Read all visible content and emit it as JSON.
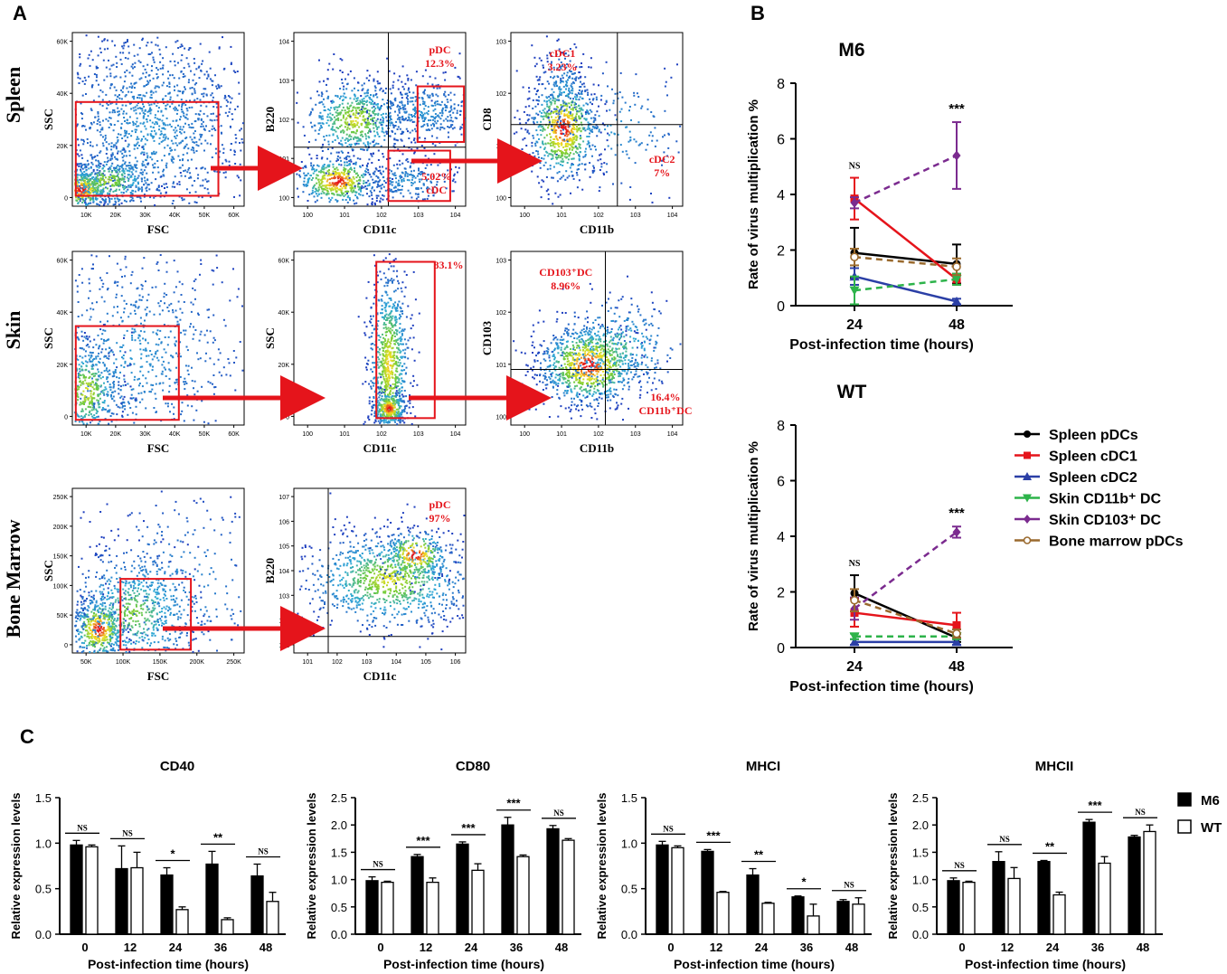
{
  "panels": {
    "a": "A",
    "b": "B",
    "c": "C"
  },
  "flow": {
    "rows": [
      {
        "label": "Spleen",
        "plots": [
          {
            "xlabel": "FSC",
            "ylabel": "SSC",
            "xticks": [
              "10K",
              "20K",
              "30K",
              "40K",
              "50K",
              "60K"
            ],
            "yticks": [
              "0",
              "20K",
              "40K",
              "60K"
            ],
            "gates": [],
            "label_color": "#e5141b"
          },
          {
            "xlabel": "CD11c",
            "ylabel": "B220",
            "xticks": [
              "10^0",
              "10^1",
              "10^2",
              "10^3",
              "10^4"
            ],
            "yticks": [
              "10^0",
              "10^1",
              "10^2",
              "10^3",
              "10^4"
            ],
            "gates": [
              {
                "text": "pDC",
                "sub": "12.3%"
              },
              {
                "text": "5.02%",
                "sub": "cDC"
              }
            ]
          },
          {
            "xlabel": "CD11b",
            "ylabel": "CD8",
            "xticks": [
              "10^0",
              "10^1",
              "10^2",
              "10^3",
              "10^4"
            ],
            "yticks": [
              "10^0",
              "10^1",
              "10^2",
              "10^3"
            ],
            "gates": [
              {
                "text": "cDC1",
                "sub": "3.23%"
              },
              {
                "text": "cDC2",
                "sub": "7%"
              }
            ]
          }
        ]
      },
      {
        "label": "Skin",
        "plots": [
          {
            "xlabel": "FSC",
            "ylabel": "SSC",
            "xticks": [
              "10K",
              "20K",
              "30K",
              "40K",
              "50K",
              "60K"
            ],
            "yticks": [
              "0",
              "20K",
              "40K",
              "60K"
            ],
            "gates": []
          },
          {
            "xlabel": "CD11c",
            "ylabel": "SSC",
            "xticks": [
              "10^0",
              "10^1",
              "10^2",
              "10^3",
              "10^4"
            ],
            "yticks": [
              "0",
              "20K",
              "40K",
              "60K"
            ],
            "gates": [
              {
                "text": "83.1%",
                "sub": ""
              }
            ]
          },
          {
            "xlabel": "CD11b",
            "ylabel": "CD103",
            "xticks": [
              "10^0",
              "10^1",
              "10^2",
              "10^3",
              "10^4"
            ],
            "yticks": [
              "10^0",
              "10^1",
              "10^2",
              "10^3"
            ],
            "gates": [
              {
                "text": "CD103⁺DC",
                "sub": "8.96%"
              },
              {
                "text": "16.4%",
                "sub": "CD11b⁺DC"
              }
            ]
          }
        ]
      },
      {
        "label": "Bone Marrow",
        "plots": [
          {
            "xlabel": "FSC",
            "ylabel": "SSC",
            "xticks": [
              "50K",
              "100K",
              "150K",
              "200K",
              "250K"
            ],
            "yticks": [
              "0",
              "50K",
              "100K",
              "150K",
              "200K",
              "250K"
            ],
            "gates": []
          },
          {
            "xlabel": "CD11c",
            "ylabel": "B220",
            "xticks": [
              "10^1",
              "10^2",
              "10^3",
              "10^4",
              "10^5",
              "10^6"
            ],
            "yticks": [
              "10^1",
              "10^2",
              "10^3",
              "10^4",
              "10^5",
              "10^6",
              "10^7"
            ],
            "gates": [
              {
                "text": "pDC",
                "sub": "97%"
              }
            ]
          }
        ]
      }
    ]
  },
  "chart_data": [
    {
      "type": "line",
      "title": "M6",
      "xlabel": "Post-infection time (hours)",
      "ylabel": "Rate of virus multiplication %",
      "categories": [
        "24",
        "48"
      ],
      "ylim": [
        0,
        8
      ],
      "yticks": [
        "0",
        "2",
        "4",
        "6",
        "8"
      ],
      "significance": [
        "NS",
        "***"
      ],
      "series": [
        {
          "name": "Spleen pDCs",
          "values": [
            1.9,
            1.5
          ],
          "errors": [
            0.9,
            0.7
          ],
          "color": "#000000",
          "marker": "circle",
          "dashed": false
        },
        {
          "name": "Spleen cDC1",
          "values": [
            3.85,
            0.95
          ],
          "errors": [
            0.75,
            0.2
          ],
          "color": "#e5141b",
          "marker": "square",
          "dashed": false
        },
        {
          "name": "Spleen cDC2",
          "values": [
            1.05,
            0.15
          ],
          "errors": [
            0.3,
            0.1
          ],
          "color": "#2b3fa6",
          "marker": "triangle",
          "dashed": false
        },
        {
          "name": "Skin CD11b⁺ DC",
          "values": [
            0.55,
            0.95
          ],
          "errors": [
            0.5,
            0.2
          ],
          "color": "#2db34a",
          "marker": "triangle-down",
          "dashed": true
        },
        {
          "name": "Skin CD103⁺ DC",
          "values": [
            3.7,
            5.4
          ],
          "errors": [
            0.2,
            1.2
          ],
          "color": "#7b2b8f",
          "marker": "diamond",
          "dashed": true
        },
        {
          "name": "Bone marrow pDCs",
          "values": [
            1.75,
            1.4
          ],
          "errors": [
            0.3,
            0.3
          ],
          "color": "#9a6a2e",
          "marker": "open-circle",
          "dashed": true
        }
      ]
    },
    {
      "type": "line",
      "title": "WT",
      "xlabel": "Post-infection time (hours)",
      "ylabel": "Rate of virus multiplication %",
      "categories": [
        "24",
        "48"
      ],
      "ylim": [
        0,
        8
      ],
      "yticks": [
        "0",
        "2",
        "4",
        "6",
        "8"
      ],
      "significance": [
        "NS",
        "***"
      ],
      "series": [
        {
          "name": "Spleen pDCs",
          "values": [
            1.95,
            0.35
          ],
          "errors": [
            0.65,
            0.15
          ],
          "color": "#000000",
          "marker": "circle",
          "dashed": false
        },
        {
          "name": "Spleen cDC1",
          "values": [
            1.25,
            0.8
          ],
          "errors": [
            0.5,
            0.45
          ],
          "color": "#e5141b",
          "marker": "square",
          "dashed": false
        },
        {
          "name": "Spleen cDC2",
          "values": [
            0.2,
            0.2
          ],
          "errors": [
            0.1,
            0.1
          ],
          "color": "#2b3fa6",
          "marker": "triangle",
          "dashed": false
        },
        {
          "name": "Skin CD11b⁺ DC",
          "values": [
            0.4,
            0.4
          ],
          "errors": [
            0.1,
            0.1
          ],
          "color": "#2db34a",
          "marker": "triangle-down",
          "dashed": true
        },
        {
          "name": "Skin CD103⁺ DC",
          "values": [
            1.4,
            4.15
          ],
          "errors": [
            0.4,
            0.2
          ],
          "color": "#7b2b8f",
          "marker": "diamond",
          "dashed": true
        },
        {
          "name": "Bone marrow pDCs",
          "values": [
            1.7,
            0.5
          ],
          "errors": [
            0.4,
            0.15
          ],
          "color": "#9a6a2e",
          "marker": "open-circle",
          "dashed": true
        }
      ]
    },
    {
      "type": "bar",
      "title": "CD40",
      "xlabel": "Post-infection time (hours)",
      "ylabel": "Relative expression levels",
      "categories": [
        "0",
        "12",
        "24",
        "36",
        "48"
      ],
      "ylim": [
        0,
        1.5
      ],
      "yticks": [
        "0.0",
        "0.5",
        "1.0",
        "1.5"
      ],
      "significance": [
        "NS",
        "NS",
        "*",
        "**",
        "NS"
      ],
      "series": [
        {
          "name": "M6",
          "values": [
            0.98,
            0.72,
            0.65,
            0.77,
            0.64
          ],
          "errors": [
            0.05,
            0.25,
            0.08,
            0.14,
            0.13
          ]
        },
        {
          "name": "WT",
          "values": [
            0.96,
            0.73,
            0.27,
            0.16,
            0.36
          ],
          "errors": [
            0.02,
            0.17,
            0.03,
            0.02,
            0.1
          ]
        }
      ]
    },
    {
      "type": "bar",
      "title": "CD80",
      "xlabel": "Post-infection time (hours)",
      "ylabel": "Relative expression levels",
      "categories": [
        "0",
        "12",
        "24",
        "36",
        "48"
      ],
      "ylim": [
        0,
        2.5
      ],
      "yticks": [
        "0.0",
        "0.5",
        "1.0",
        "1.5",
        "2.0",
        "2.5"
      ],
      "significance": [
        "NS",
        "***",
        "***",
        "***",
        "NS"
      ],
      "series": [
        {
          "name": "M6",
          "values": [
            0.98,
            1.42,
            1.65,
            2.0,
            1.93
          ],
          "errors": [
            0.07,
            0.04,
            0.04,
            0.14,
            0.06
          ]
        },
        {
          "name": "WT",
          "values": [
            0.95,
            0.95,
            1.17,
            1.42,
            1.72
          ],
          "errors": [
            0.02,
            0.08,
            0.12,
            0.03,
            0.03
          ]
        }
      ]
    },
    {
      "type": "bar",
      "title": "MHCI",
      "xlabel": "Post-infection time (hours)",
      "ylabel": "Relative expression levels",
      "categories": [
        "0",
        "12",
        "24",
        "36",
        "48"
      ],
      "ylim": [
        0,
        1.5
      ],
      "yticks": [
        "0.0",
        "0.5",
        "1.0",
        "1.5"
      ],
      "significance": [
        "NS",
        "***",
        "**",
        "*",
        "NS"
      ],
      "series": [
        {
          "name": "M6",
          "values": [
            0.98,
            0.91,
            0.65,
            0.41,
            0.36
          ],
          "errors": [
            0.04,
            0.02,
            0.07,
            0.01,
            0.02
          ]
        },
        {
          "name": "WT",
          "values": [
            0.95,
            0.46,
            0.34,
            0.2,
            0.33
          ],
          "errors": [
            0.02,
            0.01,
            0.01,
            0.13,
            0.07
          ]
        }
      ]
    },
    {
      "type": "bar",
      "title": "MHCII",
      "xlabel": "Post-infection time (hours)",
      "ylabel": "Relative expression levels",
      "categories": [
        "0",
        "12",
        "24",
        "36",
        "48"
      ],
      "ylim": [
        0,
        2.5
      ],
      "yticks": [
        "0.0",
        "0.5",
        "1.0",
        "1.5",
        "2.0",
        "2.5"
      ],
      "significance": [
        "NS",
        "NS",
        "**",
        "***",
        "NS"
      ],
      "series": [
        {
          "name": "M6",
          "values": [
            0.98,
            1.33,
            1.33,
            2.05,
            1.78
          ],
          "errors": [
            0.05,
            0.18,
            0.02,
            0.05,
            0.03
          ]
        },
        {
          "name": "WT",
          "values": [
            0.95,
            1.02,
            0.72,
            1.3,
            1.88
          ],
          "errors": [
            0.02,
            0.2,
            0.05,
            0.12,
            0.12
          ]
        }
      ]
    }
  ],
  "bar_legend": [
    {
      "name": "M6",
      "fill": "#000000"
    },
    {
      "name": "WT",
      "fill": "#ffffff"
    }
  ]
}
